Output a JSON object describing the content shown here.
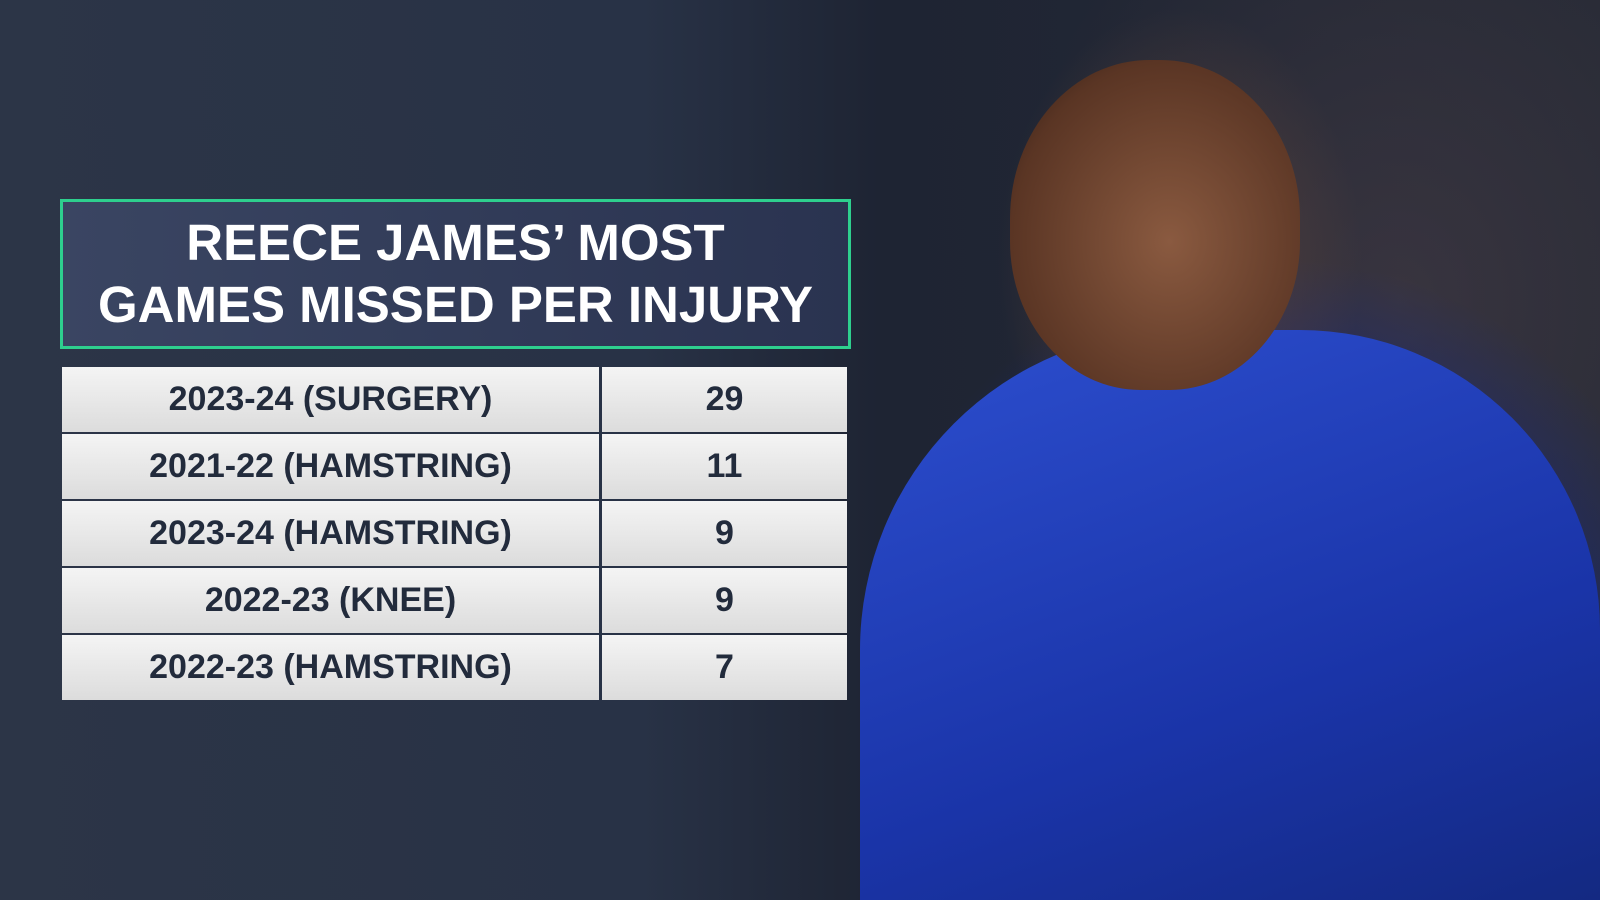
{
  "title": {
    "lines": [
      "REECE JAMES’ MOST",
      "GAMES MISSED PER INJURY"
    ]
  },
  "table": {
    "rows": [
      [
        "2023-24 (SURGERY)",
        29
      ],
      [
        "2021-22 (HAMSTRING)",
        11
      ],
      [
        "2023-24 (HAMSTRING)",
        9
      ],
      [
        "2022-23 (KNEE)",
        9
      ],
      [
        "2022-23 (HAMSTRING)",
        7
      ]
    ]
  }
}
